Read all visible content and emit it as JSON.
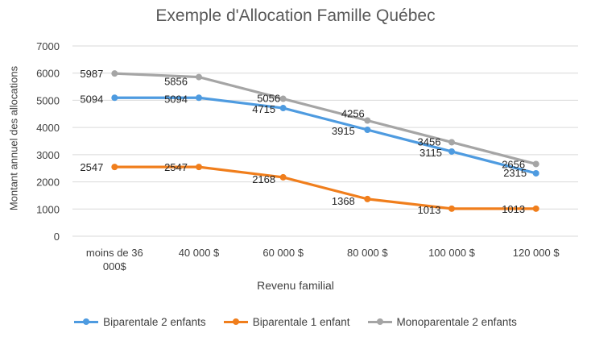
{
  "chart_data": {
    "type": "line",
    "title": "Exemple d'Allocation Famille Québec",
    "xlabel": "Revenu familial",
    "ylabel": "Montant annuel des allocations",
    "categories": [
      [
        "moins de 36",
        "000$"
      ],
      [
        "40 000 $"
      ],
      [
        "60 000 $"
      ],
      [
        "80 000 $"
      ],
      [
        "100 000 $"
      ],
      [
        "120 000 $"
      ]
    ],
    "ylim": [
      0,
      7000
    ],
    "yticks": [
      "0",
      "1000",
      "2000",
      "3000",
      "4000",
      "5000",
      "6000",
      "7000"
    ],
    "ytick_values": [
      0,
      1000,
      2000,
      3000,
      4000,
      5000,
      6000,
      7000
    ],
    "grid": true,
    "legend_position": "bottom",
    "series": [
      {
        "name": "Biparentale 2 enfants",
        "color": "#4E9BE0",
        "values": [
          5094,
          5094,
          4715,
          3915,
          3115,
          2315
        ],
        "labels": [
          "5094",
          "5094",
          "4715",
          "3915",
          "3115",
          "2315"
        ]
      },
      {
        "name": "Biparentale 1 enfant",
        "color": "#F07E1C",
        "values": [
          2547,
          2547,
          2168,
          1368,
          1013,
          1013
        ],
        "labels": [
          "2547",
          "2547",
          "2168",
          "1368",
          "1013",
          "1013"
        ]
      },
      {
        "name": "Monoparentale 2 enfants",
        "color": "#A5A5A5",
        "values": [
          5987,
          5856,
          5056,
          4256,
          3456,
          2656
        ],
        "labels": [
          "5987",
          "5856",
          "5056",
          "4256",
          "3456",
          "2656"
        ]
      }
    ]
  }
}
